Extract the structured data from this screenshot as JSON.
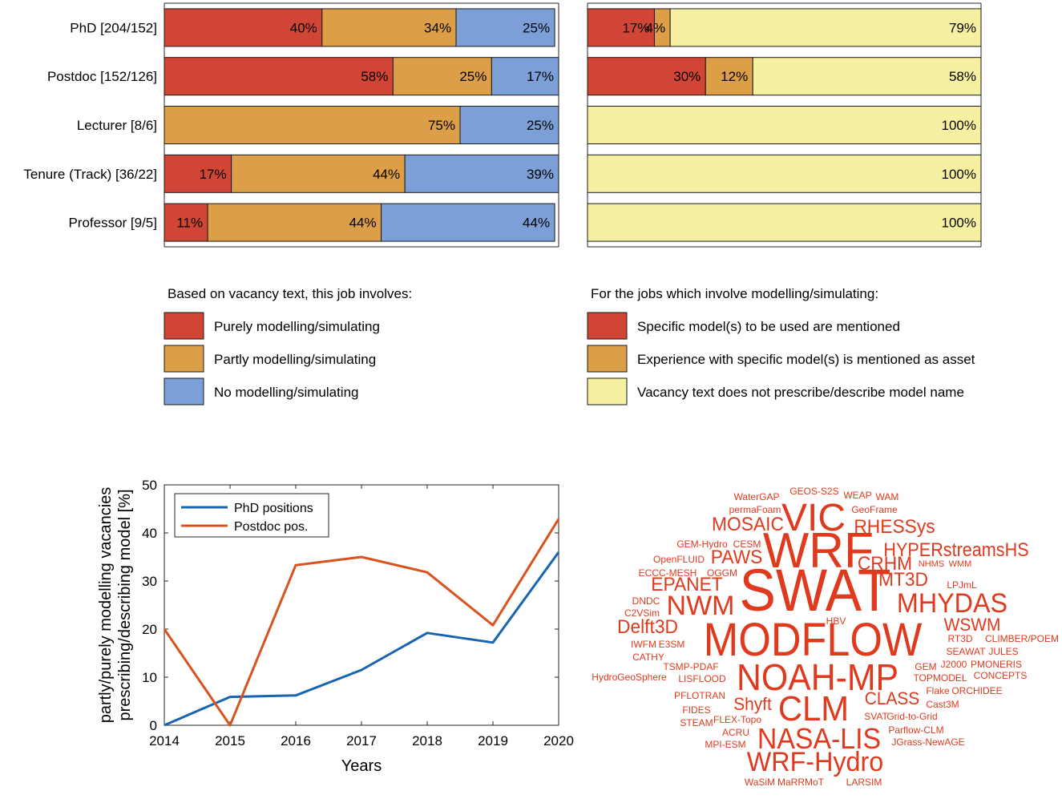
{
  "colors": {
    "purely": "#d04535",
    "partly": "#dc9e47",
    "none": "#7b9fd6",
    "mentioned": "#d04535",
    "asset": "#dc9e47",
    "not_prescribed": "#f6f0a3",
    "phd_line": "#1764b0",
    "postdoc_line": "#d9531e",
    "cloud": "#e03a1e"
  },
  "chart_data": [
    {
      "type": "bar",
      "orientation": "horizontal-stacked",
      "categories": [
        "PhD [204/152]",
        "Postdoc [152/126]",
        "Lecturer [8/6]",
        "Tenure (Track) [36/22]",
        "Professor [9/5]"
      ],
      "series": [
        {
          "name": "Purely modelling/simulating",
          "color_key": "purely",
          "values": [
            40,
            58,
            0,
            17,
            11
          ],
          "labels": [
            "40%",
            "58%",
            "",
            "17%",
            "11%"
          ]
        },
        {
          "name": "Partly modelling/simulating",
          "color_key": "partly",
          "values": [
            34,
            25,
            75,
            44,
            44
          ],
          "labels": [
            "34%",
            "25%",
            "75%",
            "44%",
            "44%"
          ]
        },
        {
          "name": "No modelling/simulating",
          "color_key": "none",
          "values": [
            25,
            17,
            25,
            39,
            44
          ],
          "labels": [
            "25%",
            "17%",
            "25%",
            "39%",
            "44%"
          ]
        }
      ],
      "xlim": [
        0,
        100
      ],
      "legend_title": "Based on vacancy text, this job involves:"
    },
    {
      "type": "bar",
      "orientation": "horizontal-stacked",
      "categories": [
        "PhD",
        "Postdoc",
        "Lecturer",
        "Tenure (Track)",
        "Professor"
      ],
      "series": [
        {
          "name": "Specific model(s) to be used are mentioned",
          "color_key": "mentioned",
          "values": [
            17,
            30,
            0,
            0,
            0
          ],
          "labels": [
            "17%",
            "30%",
            "",
            "",
            ""
          ]
        },
        {
          "name": "Experience with specific model(s) is mentioned as asset",
          "color_key": "asset",
          "values": [
            4,
            12,
            0,
            0,
            0
          ],
          "labels": [
            "4%",
            "12%",
            "",
            "",
            ""
          ]
        },
        {
          "name": "Vacancy text does not prescribe/describe model name",
          "color_key": "not_prescribed",
          "values": [
            79,
            58,
            100,
            100,
            100
          ],
          "labels": [
            "79%",
            "58%",
            "100%",
            "100%",
            "100%"
          ]
        }
      ],
      "xlim": [
        0,
        100
      ],
      "legend_title": "For the jobs which involve modelling/simulating:"
    },
    {
      "type": "line",
      "x": [
        2014,
        2015,
        2016,
        2017,
        2018,
        2019,
        2020
      ],
      "series": [
        {
          "name": "PhD positions",
          "color_key": "phd_line",
          "values": [
            0,
            5.9,
            6.2,
            11.5,
            19.2,
            17.2,
            36
          ]
        },
        {
          "name": "Postdoc pos.",
          "color_key": "postdoc_line",
          "values": [
            20,
            0,
            33.3,
            35,
            31.8,
            20.8,
            42.9
          ]
        }
      ],
      "xlabel": "Years",
      "ylabel": [
        "partly/purely modelling vacancies",
        "prescribing/describing model [%]"
      ],
      "xlim": [
        2014,
        2020
      ],
      "ylim": [
        0,
        50
      ],
      "xticks": [
        "2014",
        "2015",
        "2016",
        "2017",
        "2018",
        "2019",
        "2020"
      ],
      "yticks": [
        "0",
        "10",
        "20",
        "30",
        "40",
        "50"
      ],
      "legend_position": "top-left"
    }
  ],
  "word_cloud": {
    "words": [
      {
        "text": "SWAT",
        "size": 74
      },
      {
        "text": "WRF",
        "size": 62
      },
      {
        "text": "MODFLOW",
        "size": 58
      },
      {
        "text": "VIC",
        "size": 48
      },
      {
        "text": "NOAH-MP",
        "size": 46
      },
      {
        "text": "CLM",
        "size": 44
      },
      {
        "text": "NASA-LIS",
        "size": 36
      },
      {
        "text": "WRF-Hydro",
        "size": 34
      },
      {
        "text": "NWM",
        "size": 34
      },
      {
        "text": "MHYDAS",
        "size": 34
      },
      {
        "text": "MOSAIC",
        "size": 24
      },
      {
        "text": "RHESSys",
        "size": 24
      },
      {
        "text": "HYPERstreamsHS",
        "size": 24
      },
      {
        "text": "PAWS",
        "size": 24
      },
      {
        "text": "CRHM",
        "size": 24
      },
      {
        "text": "MT3D",
        "size": 24
      },
      {
        "text": "EPANET",
        "size": 24
      },
      {
        "text": "Delft3D",
        "size": 24
      },
      {
        "text": "WSWM",
        "size": 22
      },
      {
        "text": "CLASS",
        "size": 22
      },
      {
        "text": "Shyft",
        "size": 22
      },
      {
        "text": "WaterGAP",
        "size": 12
      },
      {
        "text": "GEOS-S2S",
        "size": 12
      },
      {
        "text": "WEAP",
        "size": 12
      },
      {
        "text": "WAM",
        "size": 12
      },
      {
        "text": "permaFoam",
        "size": 12
      },
      {
        "text": "GeoFrame",
        "size": 12
      },
      {
        "text": "GEM-Hydro",
        "size": 12
      },
      {
        "text": "CESM",
        "size": 12
      },
      {
        "text": "OpenFLUID",
        "size": 12
      },
      {
        "text": "NHMS",
        "size": 11
      },
      {
        "text": "WMM",
        "size": 11
      },
      {
        "text": "ECCC-MESH",
        "size": 12
      },
      {
        "text": "OGGM",
        "size": 12
      },
      {
        "text": "LPJmL",
        "size": 12
      },
      {
        "text": "DNDC",
        "size": 12
      },
      {
        "text": "C2VSim",
        "size": 12
      },
      {
        "text": "HBV",
        "size": 12
      },
      {
        "text": "RT3D",
        "size": 12
      },
      {
        "text": "CLIMBER/POEM",
        "size": 12
      },
      {
        "text": "IWFM",
        "size": 12
      },
      {
        "text": "E3SM",
        "size": 12
      },
      {
        "text": "SEAWAT",
        "size": 12
      },
      {
        "text": "JULES",
        "size": 12
      },
      {
        "text": "CATHY",
        "size": 12
      },
      {
        "text": "TSMP-PDAF",
        "size": 12
      },
      {
        "text": "GEM",
        "size": 12
      },
      {
        "text": "J2000",
        "size": 12
      },
      {
        "text": "PMONERIS",
        "size": 12
      },
      {
        "text": "HydroGeoSphere",
        "size": 12
      },
      {
        "text": "LISFLOOD",
        "size": 12
      },
      {
        "text": "TOPMODEL",
        "size": 12
      },
      {
        "text": "CONCEPTS",
        "size": 12
      },
      {
        "text": "PFLOTRAN",
        "size": 12
      },
      {
        "text": "Flake",
        "size": 12
      },
      {
        "text": "ORCHIDEE",
        "size": 12
      },
      {
        "text": "FIDES",
        "size": 12
      },
      {
        "text": "Cast3M",
        "size": 12
      },
      {
        "text": "SVAT",
        "size": 12
      },
      {
        "text": "Grid-to-Grid",
        "size": 12
      },
      {
        "text": "STEAM",
        "size": 12
      },
      {
        "text": "FLEX-Topo",
        "size": 12
      },
      {
        "text": "ACRU",
        "size": 12
      },
      {
        "text": "Parflow-CLM",
        "size": 12
      },
      {
        "text": "MPI-ESM",
        "size": 12
      },
      {
        "text": "JGrass-NewAGE",
        "size": 12
      },
      {
        "text": "WaSiM",
        "size": 12
      },
      {
        "text": "MaRRMoT",
        "size": 12
      },
      {
        "text": "LARSIM",
        "size": 12
      }
    ]
  }
}
